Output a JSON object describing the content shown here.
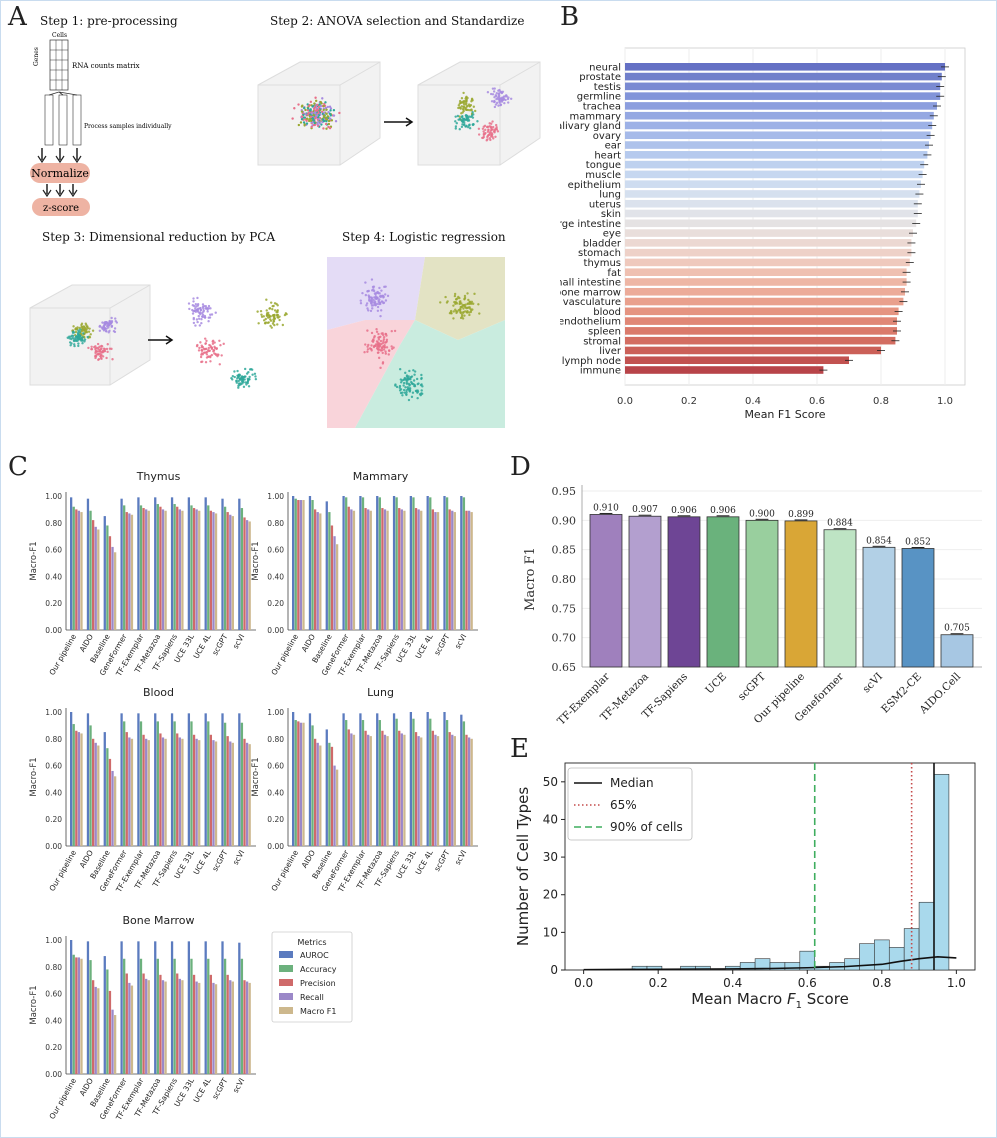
{
  "panels": {
    "a": "A",
    "b": "B",
    "c": "C",
    "d": "D",
    "e": "E"
  },
  "panel_a": {
    "step1": "Step 1: pre-processing",
    "step2": "Step 2: ANOVA selection and Standardize",
    "step3": "Step 3: Dimensional reduction by PCA",
    "step4": "Step 4: Logistic regression",
    "cells_label": "Cells",
    "genes_label": "Genes",
    "matrix_label": "RNA counts matrix",
    "process_label": "Process samples individually",
    "normalize": "Normalize",
    "zscore": "z-score"
  },
  "chart_data": [
    {
      "id": "B",
      "type": "bar",
      "orientation": "horizontal",
      "categories": [
        "neural",
        "prostate",
        "testis",
        "germline",
        "trachea",
        "mammary",
        "salivary gland",
        "ovary",
        "ear",
        "heart",
        "tongue",
        "muscle",
        "epithelium",
        "lung",
        "uterus",
        "skin",
        "large intestine",
        "eye",
        "bladder",
        "stomach",
        "thymus",
        "fat",
        "small intestine",
        "bone marrow",
        "vasculature",
        "blood",
        "endothelium",
        "spleen",
        "stromal",
        "liver",
        "lymph node",
        "immune"
      ],
      "values": [
        1.0,
        0.99,
        0.985,
        0.985,
        0.975,
        0.965,
        0.96,
        0.955,
        0.95,
        0.945,
        0.935,
        0.93,
        0.925,
        0.92,
        0.915,
        0.915,
        0.91,
        0.9,
        0.895,
        0.895,
        0.89,
        0.88,
        0.88,
        0.875,
        0.87,
        0.855,
        0.85,
        0.85,
        0.845,
        0.8,
        0.7,
        0.62
      ],
      "xlabel": "Mean F1 Score",
      "xlim": [
        0,
        1.0
      ],
      "xticks": [
        "0.0",
        "0.2",
        "0.4",
        "0.6",
        "0.8",
        "1.0"
      ],
      "colors": [
        "#6470c4",
        "#7180cb",
        "#7a8ad2",
        "#8294d9",
        "#8c9ede",
        "#95a8e2",
        "#9db1e6",
        "#a6bae9",
        "#aec2eb",
        "#b6caee",
        "#bed1ef",
        "#c6d7f0",
        "#cedcf0",
        "#d5e0ef",
        "#dbe2ed",
        "#e1e3e9",
        "#e5e2e3",
        "#e9dedb",
        "#ecd8d2",
        "#eed1c8",
        "#efc9bd",
        "#efc0b1",
        "#eeb6a5",
        "#ecab99",
        "#e9a08d",
        "#e59481",
        "#e08776",
        "#da7a6b",
        "#d36d61",
        "#cb6058",
        "#c25250",
        "#b84449"
      ]
    },
    {
      "id": "C",
      "type": "bar",
      "grouped": true,
      "metrics": [
        "AUROC",
        "Accuracy",
        "Precision",
        "Recall",
        "Macro F1"
      ],
      "metric_colors": [
        "#5b7bbf",
        "#6cb17d",
        "#cf6a6a",
        "#9b88c8",
        "#cdb88d"
      ],
      "legend_title": "Metrics",
      "ylabel": "Macro-F1",
      "yticks": [
        "0.00",
        "0.20",
        "0.40",
        "0.60",
        "0.80",
        "1.00"
      ],
      "categories": [
        "Our pipeline",
        "AIDO",
        "Baseline",
        "GeneFormer",
        "TF-Exemplar",
        "TF-Metazoa",
        "TF-Sapiens",
        "UCE 33L",
        "UCE 4L",
        "scGPT",
        "scVI"
      ],
      "subplots": [
        {
          "title": "Thymus",
          "series": [
            [
              0.99,
              0.98,
              0.85,
              0.98,
              0.99,
              0.99,
              0.99,
              0.99,
              0.99,
              0.98,
              0.98
            ],
            [
              0.92,
              0.89,
              0.78,
              0.93,
              0.93,
              0.94,
              0.94,
              0.93,
              0.93,
              0.92,
              0.91
            ],
            [
              0.9,
              0.82,
              0.7,
              0.88,
              0.91,
              0.92,
              0.92,
              0.91,
              0.89,
              0.88,
              0.84
            ],
            [
              0.89,
              0.77,
              0.62,
              0.87,
              0.9,
              0.9,
              0.9,
              0.9,
              0.88,
              0.86,
              0.82
            ],
            [
              0.88,
              0.75,
              0.58,
              0.86,
              0.89,
              0.89,
              0.89,
              0.89,
              0.87,
              0.85,
              0.81
            ]
          ]
        },
        {
          "title": "Mammary",
          "series": [
            [
              1.0,
              1.0,
              0.96,
              1.0,
              1.0,
              1.0,
              1.0,
              1.0,
              1.0,
              1.0,
              1.0
            ],
            [
              0.98,
              0.97,
              0.88,
              0.99,
              0.99,
              0.99,
              0.99,
              0.99,
              0.99,
              0.99,
              0.99
            ],
            [
              0.97,
              0.9,
              0.78,
              0.92,
              0.91,
              0.91,
              0.91,
              0.91,
              0.9,
              0.9,
              0.89
            ],
            [
              0.97,
              0.88,
              0.7,
              0.9,
              0.9,
              0.9,
              0.9,
              0.9,
              0.88,
              0.89,
              0.89
            ],
            [
              0.97,
              0.87,
              0.64,
              0.89,
              0.89,
              0.89,
              0.89,
              0.89,
              0.88,
              0.88,
              0.88
            ]
          ]
        },
        {
          "title": "Blood",
          "series": [
            [
              1.0,
              0.99,
              0.85,
              0.99,
              0.99,
              0.99,
              0.99,
              0.99,
              0.99,
              0.99,
              0.99
            ],
            [
              0.91,
              0.9,
              0.73,
              0.93,
              0.93,
              0.93,
              0.93,
              0.93,
              0.93,
              0.92,
              0.92
            ],
            [
              0.86,
              0.8,
              0.65,
              0.85,
              0.83,
              0.84,
              0.84,
              0.83,
              0.83,
              0.82,
              0.8
            ],
            [
              0.85,
              0.77,
              0.56,
              0.81,
              0.8,
              0.81,
              0.81,
              0.8,
              0.79,
              0.78,
              0.77
            ],
            [
              0.84,
              0.75,
              0.52,
              0.8,
              0.79,
              0.8,
              0.8,
              0.79,
              0.78,
              0.77,
              0.76
            ]
          ]
        },
        {
          "title": "Lung",
          "series": [
            [
              1.0,
              0.99,
              0.87,
              0.99,
              0.99,
              0.99,
              0.99,
              1.0,
              1.0,
              1.0,
              0.98
            ],
            [
              0.94,
              0.9,
              0.77,
              0.94,
              0.94,
              0.94,
              0.95,
              0.95,
              0.95,
              0.94,
              0.93
            ],
            [
              0.93,
              0.8,
              0.74,
              0.87,
              0.86,
              0.86,
              0.86,
              0.85,
              0.86,
              0.85,
              0.83
            ],
            [
              0.92,
              0.77,
              0.6,
              0.84,
              0.83,
              0.83,
              0.84,
              0.82,
              0.83,
              0.83,
              0.81
            ],
            [
              0.92,
              0.75,
              0.57,
              0.83,
              0.82,
              0.82,
              0.83,
              0.81,
              0.82,
              0.82,
              0.8
            ]
          ]
        },
        {
          "title": "Bone Marrow",
          "series": [
            [
              1.0,
              0.99,
              0.88,
              0.99,
              0.99,
              0.99,
              0.99,
              0.99,
              0.99,
              0.99,
              0.98
            ],
            [
              0.89,
              0.85,
              0.78,
              0.86,
              0.86,
              0.86,
              0.86,
              0.86,
              0.86,
              0.86,
              0.86
            ],
            [
              0.87,
              0.7,
              0.62,
              0.75,
              0.75,
              0.74,
              0.75,
              0.74,
              0.74,
              0.74,
              0.7
            ],
            [
              0.87,
              0.65,
              0.48,
              0.68,
              0.71,
              0.7,
              0.71,
              0.69,
              0.68,
              0.7,
              0.69
            ],
            [
              0.86,
              0.64,
              0.44,
              0.66,
              0.7,
              0.69,
              0.7,
              0.68,
              0.67,
              0.69,
              0.68
            ]
          ]
        }
      ]
    },
    {
      "id": "D",
      "type": "bar",
      "categories": [
        "TF-Exemplar",
        "TF-Metazoa",
        "TF-Sapiens",
        "UCE",
        "scGPT",
        "Our pipeline",
        "Geneformer",
        "scVI",
        "ESM2-CE",
        "AIDO.Cell"
      ],
      "values": [
        0.91,
        0.907,
        0.906,
        0.906,
        0.9,
        0.899,
        0.884,
        0.854,
        0.852,
        0.705
      ],
      "value_labels": [
        "0.910",
        "0.907",
        "0.906",
        "0.906",
        "0.900",
        "0.899",
        "0.884",
        "0.854",
        "0.852",
        "0.705"
      ],
      "colors": [
        "#9f80bd",
        "#b39fcf",
        "#6e4595",
        "#6ab27c",
        "#99cf9e",
        "#d9a636",
        "#bee4c4",
        "#b2d0e6",
        "#5893c4",
        "#a7c7e3"
      ],
      "ylabel": "Macro F1",
      "ylim": [
        0.65,
        0.95
      ],
      "yticks": [
        "0.65",
        "0.70",
        "0.75",
        "0.80",
        "0.85",
        "0.90",
        "0.95"
      ]
    },
    {
      "id": "E",
      "type": "histogram",
      "bins_start": 0.0,
      "bin_width": 0.04,
      "counts": [
        0,
        0,
        0,
        0,
        1,
        0,
        0,
        1,
        0,
        0,
        0,
        0,
        0,
        1,
        0,
        0,
        0,
        0,
        0,
        0,
        0
      ],
      "counts_detail": [
        {
          "x": 0.15,
          "n": 1
        },
        {
          "x": 0.19,
          "n": 1
        },
        {
          "x": 0.28,
          "n": 1
        },
        {
          "x": 0.32,
          "n": 1
        },
        {
          "x": 0.4,
          "n": 1
        },
        {
          "x": 0.44,
          "n": 2
        },
        {
          "x": 0.48,
          "n": 3
        },
        {
          "x": 0.52,
          "n": 2
        },
        {
          "x": 0.56,
          "n": 2
        },
        {
          "x": 0.6,
          "n": 5
        },
        {
          "x": 0.64,
          "n": 1
        },
        {
          "x": 0.68,
          "n": 2
        },
        {
          "x": 0.72,
          "n": 3
        },
        {
          "x": 0.76,
          "n": 7
        },
        {
          "x": 0.8,
          "n": 8
        },
        {
          "x": 0.84,
          "n": 6
        },
        {
          "x": 0.88,
          "n": 11
        },
        {
          "x": 0.92,
          "n": 18
        },
        {
          "x": 0.96,
          "n": 52
        }
      ],
      "kde": [
        [
          0.0,
          0.1
        ],
        [
          0.2,
          0.2
        ],
        [
          0.4,
          0.3
        ],
        [
          0.5,
          0.4
        ],
        [
          0.6,
          0.6
        ],
        [
          0.7,
          0.9
        ],
        [
          0.8,
          1.5
        ],
        [
          0.85,
          2.3
        ],
        [
          0.9,
          3.0
        ],
        [
          0.95,
          3.5
        ],
        [
          1.0,
          3.2
        ]
      ],
      "median": 0.94,
      "p65": 0.88,
      "p90": 0.62,
      "xlabel": "Mean Macro F1 Score",
      "xlabel_main": "Mean Macro ",
      "xlabel_f": "F",
      "xlabel_sub": "1",
      "xlabel_end": " Score",
      "ylabel": "Number of Cell Types",
      "ylim": [
        0,
        55
      ],
      "xticks": [
        "0.0",
        "0.2",
        "0.4",
        "0.6",
        "0.8",
        "1.0"
      ],
      "yticks": [
        "0",
        "10",
        "20",
        "30",
        "40",
        "50"
      ],
      "legend": [
        "Median",
        "65%",
        "90% of cells"
      ]
    }
  ]
}
